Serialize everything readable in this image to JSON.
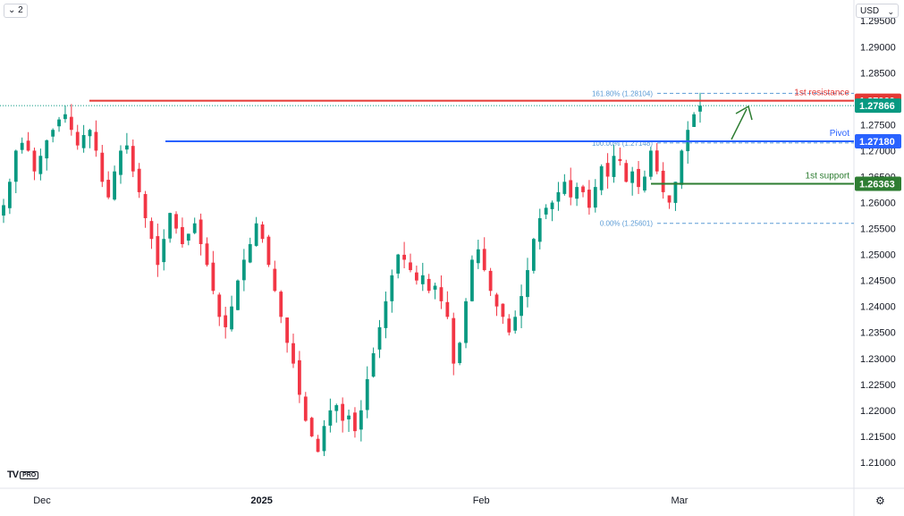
{
  "toolbar": {
    "indicator_count": "2",
    "currency": "USD"
  },
  "brand": {
    "logo": "TV",
    "badge": "PRO"
  },
  "chart_data": {
    "type": "candlestick",
    "ylim": [
      1.205,
      1.299
    ],
    "y_ticks": [
      "1.29500",
      "1.29000",
      "1.28500",
      "1.28000",
      "1.27500",
      "1.27000",
      "1.26500",
      "1.26000",
      "1.25500",
      "1.25000",
      "1.24500",
      "1.24000",
      "1.23500",
      "1.23000",
      "1.22500",
      "1.22000",
      "1.21500",
      "1.21000"
    ],
    "x_labels": [
      {
        "label": "Dec",
        "day": 0
      },
      {
        "label": "2025",
        "day": 31
      },
      {
        "label": "Feb",
        "day": 62
      },
      {
        "label": "Mar",
        "day": 90
      }
    ],
    "last_price": "1.27866",
    "levels": [
      {
        "name": "1st resistance",
        "value": 1.2796,
        "label": "1.27960",
        "color": "#e53935"
      },
      {
        "name": "Pivot",
        "value": 1.2718,
        "label": "1.27180",
        "color": "#2962ff"
      },
      {
        "name": "1st support",
        "value": 1.26363,
        "label": "1.26363",
        "color": "#2e7d32"
      }
    ],
    "fib_levels": [
      {
        "label": "161.80% (1.28104)",
        "value": 1.28104
      },
      {
        "label": "100.00% (1.27148)",
        "value": 1.27148
      },
      {
        "label": "0.00% (1.25601)",
        "value": 1.25601
      }
    ],
    "closes": [
      1.2595,
      1.264,
      1.27,
      1.2715,
      1.27,
      1.266,
      1.269,
      1.272,
      1.274,
      1.276,
      1.277,
      1.274,
      1.271,
      1.273,
      1.274,
      1.27,
      1.264,
      1.261,
      1.266,
      1.27,
      1.271,
      1.266,
      1.262,
      1.257,
      1.253,
      1.248,
      1.253,
      1.258,
      1.255,
      1.252,
      1.254,
      1.256,
      1.252,
      1.248,
      1.243,
      1.238,
      1.236,
      1.24,
      1.245,
      1.249,
      1.252,
      1.256,
      1.253,
      1.248,
      1.243,
      1.238,
      1.233,
      1.229,
      1.223,
      1.218,
      1.215,
      1.212,
      1.217,
      1.22,
      1.221,
      1.218,
      1.219,
      1.216,
      1.22,
      1.226,
      1.231,
      1.236,
      1.241,
      1.246,
      1.25,
      1.249,
      1.247,
      1.245,
      1.246,
      1.243,
      1.244,
      1.241,
      1.238,
      1.229,
      1.233,
      1.241,
      1.249,
      1.251,
      1.247,
      1.243,
      1.24,
      1.238,
      1.235,
      1.238,
      1.242,
      1.247,
      1.253,
      1.257,
      1.259,
      1.26,
      1.262,
      1.264,
      1.261,
      1.263,
      1.262,
      1.259,
      1.263,
      1.267,
      1.265,
      1.269,
      1.268,
      1.264,
      1.266,
      1.263,
      1.265,
      1.27,
      1.266,
      1.262,
      1.26,
      1.264,
      1.27,
      1.274,
      1.277,
      1.27866
    ]
  }
}
